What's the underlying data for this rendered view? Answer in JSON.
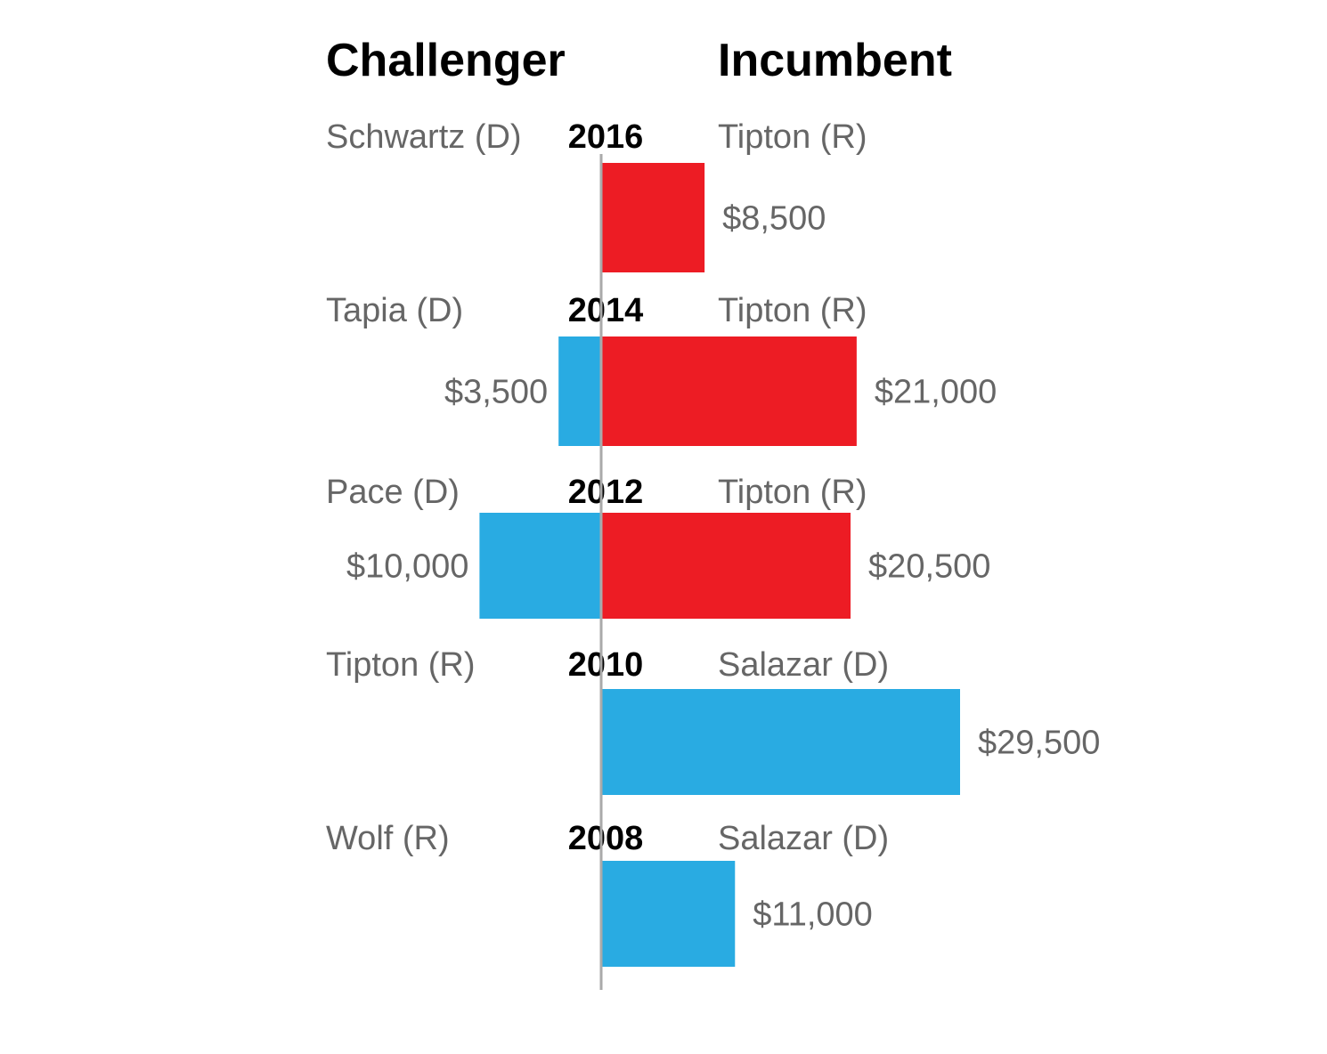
{
  "chart_data": {
    "type": "bar",
    "headers": {
      "challenger": "Challenger",
      "incumbent": "Incumbent"
    },
    "rows": [
      {
        "year": "2016",
        "challenger": "Schwartz (D)",
        "incumbent": "Tipton (R)",
        "challenger_value": 0,
        "challenger_label": "",
        "challenger_color": "#29abe2",
        "incumbent_value": 8500,
        "incumbent_label": "$8,500",
        "incumbent_color": "#ed1c24"
      },
      {
        "year": "2014",
        "challenger": "Tapia (D)",
        "incumbent": "Tipton (R)",
        "challenger_value": 3500,
        "challenger_label": "$3,500",
        "challenger_color": "#29abe2",
        "incumbent_value": 21000,
        "incumbent_label": "$21,000",
        "incumbent_color": "#ed1c24"
      },
      {
        "year": "2012",
        "challenger": "Pace (D)",
        "incumbent": "Tipton (R)",
        "challenger_value": 10000,
        "challenger_label": "$10,000",
        "challenger_color": "#29abe2",
        "incumbent_value": 20500,
        "incumbent_label": "$20,500",
        "incumbent_color": "#ed1c24"
      },
      {
        "year": "2010",
        "challenger": "Tipton (R)",
        "incumbent": "Salazar (D)",
        "challenger_value": 0,
        "challenger_label": "",
        "challenger_color": "#ed1c24",
        "incumbent_value": 29500,
        "incumbent_label": "$29,500",
        "incumbent_color": "#29abe2"
      },
      {
        "year": "2008",
        "challenger": "Wolf (R)",
        "incumbent": "Salazar (D)",
        "challenger_value": 0,
        "challenger_label": "",
        "challenger_color": "#ed1c24",
        "incumbent_value": 11000,
        "incumbent_label": "$11,000",
        "incumbent_color": "#29abe2"
      }
    ],
    "colors": {
      "democrat": "#29abe2",
      "republican": "#ed1c24",
      "axis": "#aaaaaa"
    }
  }
}
